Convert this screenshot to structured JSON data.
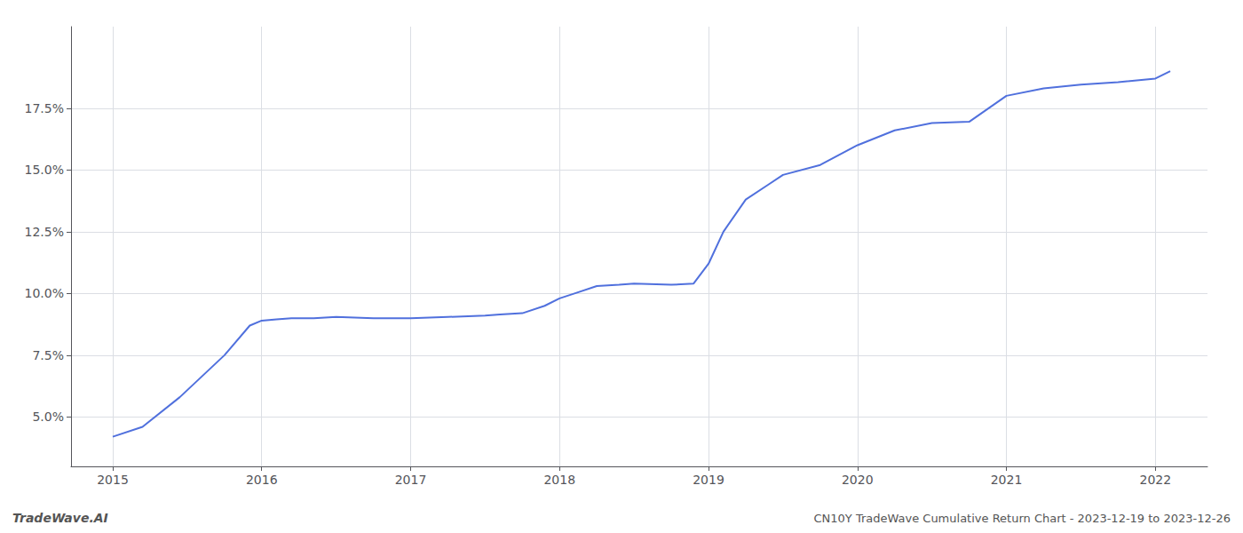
{
  "chart_data": {
    "type": "line",
    "x": [
      2015.0,
      2015.2,
      2015.45,
      2015.75,
      2015.92,
      2016.0,
      2016.1,
      2016.2,
      2016.35,
      2016.5,
      2016.75,
      2017.0,
      2017.25,
      2017.5,
      2017.6,
      2017.75,
      2017.9,
      2018.0,
      2018.1,
      2018.25,
      2018.4,
      2018.5,
      2018.75,
      2018.9,
      2019.0,
      2019.1,
      2019.25,
      2019.4,
      2019.5,
      2019.75,
      2020.0,
      2020.25,
      2020.5,
      2020.75,
      2021.0,
      2021.25,
      2021.5,
      2021.75,
      2022.0,
      2022.1
    ],
    "values": [
      4.2,
      4.6,
      5.8,
      7.5,
      8.7,
      8.9,
      8.95,
      9.0,
      9.0,
      9.05,
      9.0,
      9.0,
      9.05,
      9.1,
      9.15,
      9.2,
      9.5,
      9.8,
      10.0,
      10.3,
      10.35,
      10.4,
      10.35,
      10.4,
      11.2,
      12.5,
      13.8,
      14.4,
      14.8,
      15.2,
      16.0,
      16.6,
      16.9,
      16.95,
      18.0,
      18.3,
      18.45,
      18.55,
      18.7,
      19.0
    ],
    "xlim": [
      2014.72,
      2022.35
    ],
    "xticks": [
      2015,
      2016,
      2017,
      2018,
      2019,
      2020,
      2021,
      2022
    ],
    "ylim": [
      3.0,
      20.8
    ],
    "yticks": [
      {
        "value": 5.0,
        "label": "5.0%"
      },
      {
        "value": 7.5,
        "label": "7.5%"
      },
      {
        "value": 10.0,
        "label": "10.0%"
      },
      {
        "value": 12.5,
        "label": "12.5%"
      },
      {
        "value": 15.0,
        "label": "15.0%"
      },
      {
        "value": 17.5,
        "label": "17.5%"
      }
    ],
    "grid": true,
    "annotations": [
      "TradeWave.AI",
      "CN10Y TradeWave Cumulative Return Chart - 2023-12-19 to 2023-12-26"
    ]
  }
}
